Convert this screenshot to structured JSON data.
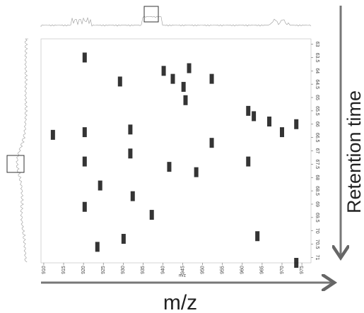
{
  "chart_data": {
    "type": "scatter",
    "xlabel": "m/z",
    "x_axis_caption": "m/z",
    "ylabel": "Retention time",
    "xlim": [
      909.3,
      977.3
    ],
    "xticks": [
      910,
      915,
      920,
      925,
      930,
      935,
      940,
      945,
      950,
      955,
      960,
      965,
      970,
      975
    ],
    "ylim": [
      62.8,
      71.2
    ],
    "yticks": [
      63,
      63.5,
      64,
      64.5,
      65,
      65.5,
      66,
      66.5,
      67,
      67.5,
      68,
      68.5,
      69,
      69.5,
      70,
      70.5,
      71
    ],
    "y_reversed": true,
    "color": "#111",
    "x": [
      920.3,
      929.2,
      940.2,
      946.6,
      942.5,
      952.3,
      945.2,
      945.7,
      961.5,
      962.9,
      966.8,
      970.0,
      973.6,
      912.3,
      920.3,
      931.8,
      931.8,
      941.6,
      948.4,
      920.3,
      952.3,
      961.5,
      924.2,
      932.4,
      937.2,
      920.3,
      923.5,
      930.1,
      963.8,
      973.6
    ],
    "values": [
      63.5,
      64.4,
      64.0,
      63.9,
      64.3,
      64.3,
      64.6,
      65.1,
      65.5,
      65.7,
      65.9,
      66.3,
      66.0,
      66.4,
      66.3,
      66.2,
      67.1,
      67.6,
      67.8,
      67.4,
      66.7,
      67.4,
      68.3,
      68.7,
      69.4,
      69.1,
      70.6,
      70.3,
      70.2,
      71.2
    ]
  }
}
